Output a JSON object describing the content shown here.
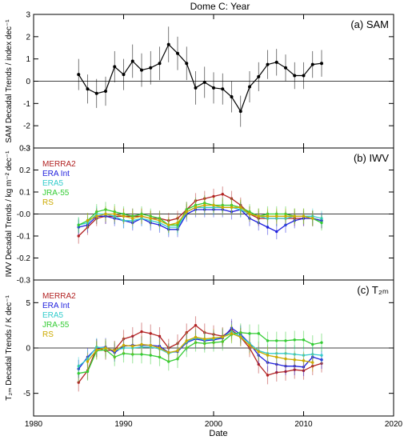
{
  "figure_title": "Dome C: Year",
  "x_axis": {
    "label": "Date",
    "ticks": [
      1980,
      1990,
      2000,
      2010,
      2020
    ],
    "range": [
      1980,
      2020
    ]
  },
  "chart_data": [
    {
      "type": "line",
      "panel_label": "(a) SAM",
      "ylabel": "SAM Decadal Trends / index dec⁻¹",
      "ylim": [
        -3,
        3
      ],
      "yticks": [
        -3,
        -2,
        -1,
        0,
        1,
        2,
        3
      ],
      "tick_labels": [
        "-3",
        "-2",
        "-1",
        "0",
        "1",
        "2",
        "3"
      ],
      "zero_line": true,
      "legend": [],
      "series": [
        {
          "color": "#000000",
          "x": [
            1985,
            1986,
            1987,
            1988,
            1989,
            1990,
            1991,
            1992,
            1993,
            1994,
            1995,
            1996,
            1997,
            1998,
            1999,
            2000,
            2001,
            2002,
            2003,
            2004,
            2005,
            2006,
            2007,
            2008,
            2009,
            2010,
            2011,
            2012
          ],
          "values": [
            0.3,
            -0.35,
            -0.55,
            -0.45,
            0.65,
            0.3,
            0.9,
            0.5,
            0.6,
            0.8,
            1.65,
            1.25,
            0.8,
            -0.3,
            -0.05,
            -0.3,
            -0.35,
            -0.7,
            -1.35,
            -0.25,
            0.2,
            0.75,
            0.85,
            0.6,
            0.25,
            0.25,
            0.75,
            0.8
          ],
          "err": [
            0.7,
            0.65,
            0.65,
            0.65,
            0.7,
            0.7,
            0.75,
            0.75,
            0.75,
            0.75,
            0.8,
            0.75,
            0.75,
            0.75,
            0.7,
            0.7,
            0.7,
            0.7,
            0.7,
            0.7,
            0.65,
            0.65,
            0.6,
            0.6,
            0.6,
            0.6,
            0.6,
            0.6
          ]
        }
      ]
    },
    {
      "type": "line",
      "panel_label": "(b) IWV",
      "ylabel": "IWV Decadal Trends / kg m⁻² dec⁻¹",
      "ylim": [
        -0.3,
        0.3
      ],
      "yticks": [
        -0.3,
        -0.2,
        -0.1,
        0,
        0.1,
        0.2,
        0.3
      ],
      "tick_labels": [
        "-0.3",
        "-0.2",
        "-0.1",
        "-0.0",
        "0.1",
        "0.2",
        "0.3"
      ],
      "zero_line": true,
      "legend": [
        {
          "label": "MERRA2",
          "color": "#b22222"
        },
        {
          "label": "ERA Int",
          "color": "#2020dd"
        },
        {
          "label": "ERA5",
          "color": "#33cccc"
        },
        {
          "label": "JRA-55",
          "color": "#33cc33"
        },
        {
          "label": "RS",
          "color": "#ccaa00"
        }
      ],
      "series": [
        {
          "name": "MERRA2",
          "color": "#b22222",
          "x": [
            1985,
            1986,
            1987,
            1988,
            1989,
            1990,
            1991,
            1992,
            1993,
            1994,
            1995,
            1996,
            1997,
            1998,
            1999,
            2000,
            2001,
            2002,
            2003,
            2004,
            2005,
            2006,
            2007,
            2008,
            2009,
            2010,
            2011,
            2012
          ],
          "values": [
            -0.1,
            -0.06,
            -0.02,
            -0.01,
            -0.01,
            -0.01,
            -0.01,
            -0.01,
            -0.02,
            -0.02,
            -0.03,
            -0.02,
            0.02,
            0.06,
            0.07,
            0.08,
            0.09,
            0.07,
            0.04,
            0.0,
            -0.02,
            -0.02,
            -0.02,
            -0.02,
            -0.02,
            -0.02,
            -0.02,
            -0.03
          ],
          "err": 0.035
        },
        {
          "name": "ERA Int",
          "color": "#2020dd",
          "x": [
            1985,
            1986,
            1987,
            1988,
            1989,
            1990,
            1991,
            1992,
            1993,
            1994,
            1995,
            1996,
            1997,
            1998,
            1999,
            2000,
            2001,
            2002,
            2003,
            2004,
            2005,
            2006,
            2007,
            2008,
            2009,
            2010,
            2011,
            2012
          ],
          "values": [
            -0.06,
            -0.05,
            -0.01,
            -0.01,
            -0.02,
            -0.03,
            -0.04,
            -0.02,
            -0.04,
            -0.05,
            -0.07,
            -0.07,
            0.0,
            0.02,
            0.02,
            0.02,
            0.02,
            0.01,
            0.02,
            -0.02,
            -0.04,
            -0.06,
            -0.08,
            -0.05,
            -0.03,
            -0.02,
            -0.02,
            -0.03
          ],
          "err": 0.035
        },
        {
          "name": "ERA5",
          "color": "#33cccc",
          "x": [
            1985,
            1986,
            1987,
            1988,
            1989,
            1990,
            1991,
            1992,
            1993,
            1994,
            1995,
            1996,
            1997,
            1998,
            1999,
            2000,
            2001,
            2002,
            2003,
            2004,
            2005,
            2006,
            2007,
            2008,
            2009,
            2010,
            2011,
            2012
          ],
          "values": [
            -0.05,
            -0.04,
            0.0,
            0.0,
            -0.01,
            -0.03,
            -0.03,
            -0.02,
            -0.03,
            -0.04,
            -0.06,
            -0.06,
            0.01,
            0.03,
            0.03,
            0.03,
            0.03,
            0.03,
            0.02,
            0.0,
            -0.01,
            -0.02,
            -0.02,
            -0.02,
            -0.01,
            -0.01,
            -0.01,
            -0.02
          ],
          "err": 0.035
        },
        {
          "name": "JRA-55",
          "color": "#33cc33",
          "x": [
            1985,
            1986,
            1987,
            1988,
            1989,
            1990,
            1991,
            1992,
            1993,
            1994,
            1995,
            1996,
            1997,
            1998,
            1999,
            2000,
            2001,
            2002,
            2003,
            2004,
            2005,
            2006,
            2007,
            2008,
            2009,
            2010,
            2011,
            2012
          ],
          "values": [
            -0.05,
            -0.03,
            0.01,
            0.02,
            0.01,
            0.0,
            -0.01,
            0.0,
            -0.01,
            -0.02,
            -0.05,
            -0.05,
            0.02,
            0.04,
            0.05,
            0.04,
            0.04,
            0.04,
            0.03,
            0.01,
            -0.01,
            0.0,
            0.0,
            0.0,
            -0.01,
            -0.01,
            -0.02,
            -0.04
          ],
          "err": 0.035
        },
        {
          "name": "RS",
          "color": "#ccaa00",
          "x": [
            1986,
            1987,
            1988,
            1989,
            1990,
            1991,
            1992,
            1993,
            1994,
            1995,
            1996,
            1997,
            1998,
            1999,
            2000,
            2001,
            2002,
            2003,
            2004,
            2005,
            2006,
            2007,
            2008,
            2009,
            2010,
            2011
          ],
          "values": [
            -0.03,
            -0.01,
            0.0,
            0.0,
            -0.01,
            -0.02,
            -0.01,
            -0.02,
            -0.03,
            -0.05,
            -0.04,
            0.01,
            0.03,
            0.04,
            0.04,
            0.03,
            0.03,
            0.03,
            0.0,
            -0.01,
            -0.01,
            -0.01,
            -0.01,
            -0.01,
            -0.01,
            -0.02
          ],
          "err": 0.035
        }
      ]
    },
    {
      "type": "line",
      "panel_label": "(c) T₂ₘ",
      "ylabel": "T₂ₘ Decadal Trends / K dec⁻¹",
      "ylim": [
        -7.5,
        7.5
      ],
      "yticks": [
        -5,
        0,
        5
      ],
      "tick_labels": [
        "-5",
        "0",
        "5"
      ],
      "zero_line": true,
      "legend": [
        {
          "label": "MERRA2",
          "color": "#b22222"
        },
        {
          "label": "ERA Int",
          "color": "#2020dd"
        },
        {
          "label": "ERA5",
          "color": "#33cccc"
        },
        {
          "label": "JRA-55",
          "color": "#33cc33"
        },
        {
          "label": "RS",
          "color": "#ccaa00"
        }
      ],
      "series": [
        {
          "name": "MERRA2",
          "color": "#b22222",
          "x": [
            1985,
            1986,
            1987,
            1988,
            1989,
            1990,
            1991,
            1992,
            1993,
            1994,
            1995,
            1996,
            1997,
            1998,
            1999,
            2000,
            2001,
            2002,
            2003,
            2004,
            2005,
            2006,
            2007,
            2008,
            2009,
            2010,
            2011,
            2012
          ],
          "values": [
            -3.8,
            -2.5,
            0.0,
            -0.3,
            -0.2,
            1.0,
            1.3,
            1.8,
            1.6,
            1.3,
            0.0,
            0.5,
            1.7,
            2.5,
            1.7,
            1.5,
            1.3,
            2.0,
            1.2,
            0.0,
            -1.8,
            -3.0,
            -2.7,
            -2.6,
            -2.4,
            -2.5,
            -2.0,
            -1.7
          ],
          "err": 1.0
        },
        {
          "name": "ERA Int",
          "color": "#2020dd",
          "x": [
            1985,
            1986,
            1987,
            1988,
            1989,
            1990,
            1991,
            1992,
            1993,
            1994,
            1995,
            1996,
            1997,
            1998,
            1999,
            2000,
            2001,
            2002,
            2003,
            2004,
            2005,
            2006,
            2007,
            2008,
            2009,
            2010,
            2011,
            2012
          ],
          "values": [
            -2.3,
            -1.0,
            0.0,
            0.1,
            -0.5,
            0.2,
            0.3,
            0.3,
            0.3,
            0.2,
            -0.5,
            -0.4,
            0.6,
            1.0,
            0.8,
            0.9,
            1.1,
            2.2,
            1.5,
            0.5,
            -0.8,
            -1.6,
            -1.8,
            -2.0,
            -2.0,
            -2.1,
            -1.0,
            -1.3
          ],
          "err": 1.0
        },
        {
          "name": "ERA5",
          "color": "#33cccc",
          "x": [
            1985,
            1986,
            1987,
            1988,
            1989,
            1990,
            1991,
            1992,
            1993,
            1994,
            1995,
            1996,
            1997,
            1998,
            1999,
            2000,
            2001,
            2002,
            2003,
            2004,
            2005,
            2006,
            2007,
            2008,
            2009,
            2010,
            2011,
            2012
          ],
          "values": [
            -2.0,
            -1.2,
            0.1,
            0.0,
            -0.3,
            0.0,
            0.0,
            0.1,
            0.1,
            -0.1,
            -0.6,
            -0.3,
            0.7,
            1.1,
            0.9,
            1.0,
            1.2,
            1.8,
            1.3,
            0.5,
            -0.3,
            -0.6,
            -0.6,
            -0.6,
            -0.7,
            -0.8,
            -0.7,
            -0.8
          ],
          "err": 1.0
        },
        {
          "name": "JRA-55",
          "color": "#33cc33",
          "x": [
            1985,
            1986,
            1987,
            1988,
            1989,
            1990,
            1991,
            1992,
            1993,
            1994,
            1995,
            1996,
            1997,
            1998,
            1999,
            2000,
            2001,
            2002,
            2003,
            2004,
            2005,
            2006,
            2007,
            2008,
            2009,
            2010,
            2011,
            2012
          ],
          "values": [
            -2.8,
            -2.6,
            -0.3,
            -0.2,
            -1.0,
            -0.6,
            -0.7,
            -0.7,
            -0.8,
            -1.0,
            -1.5,
            -1.2,
            0.0,
            0.6,
            0.5,
            0.6,
            0.7,
            1.5,
            1.7,
            1.6,
            1.6,
            0.8,
            0.8,
            0.8,
            0.9,
            0.9,
            0.4,
            0.6
          ],
          "err": 1.0
        },
        {
          "name": "RS",
          "color": "#ccaa00",
          "x": [
            1986,
            1987,
            1988,
            1989,
            1990,
            1991,
            1992,
            1993,
            1994,
            1995,
            1996,
            1997,
            1998,
            1999,
            2000,
            2001,
            2002,
            2003,
            2004,
            2005,
            2006,
            2007,
            2008,
            2009,
            2010,
            2011
          ],
          "values": [
            -1.5,
            -0.2,
            0.0,
            -0.3,
            0.3,
            0.2,
            0.4,
            0.3,
            0.0,
            -0.5,
            -0.3,
            0.8,
            1.2,
            1.0,
            1.1,
            1.2,
            1.6,
            1.2,
            0.3,
            -0.4,
            -0.8,
            -1.0,
            -1.2,
            -1.3,
            -1.4,
            -1.6
          ],
          "err": 1.0
        }
      ]
    }
  ]
}
